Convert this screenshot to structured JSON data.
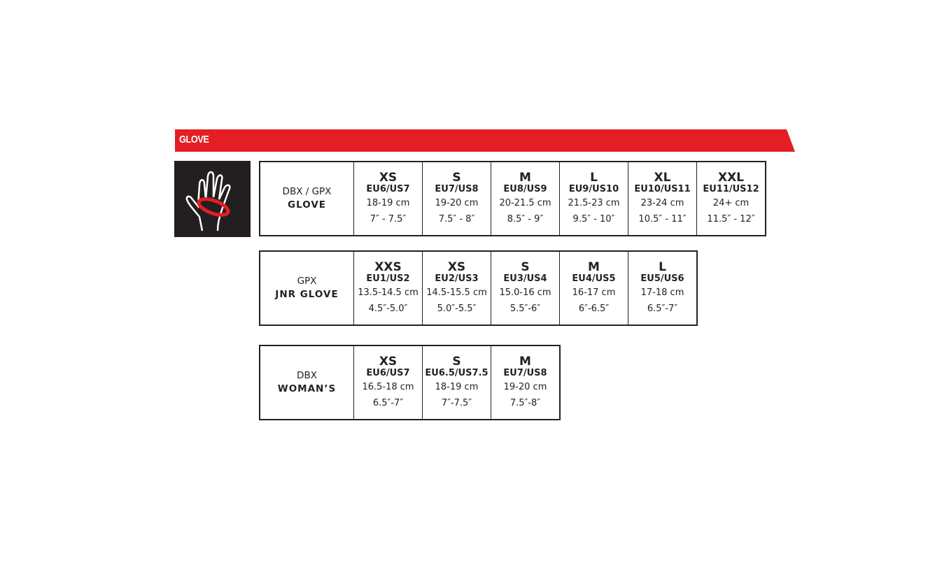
{
  "banner": {
    "title": "GLOVE",
    "color": "#e31e24"
  },
  "icon": "hand-measure-icon",
  "tables": [
    {
      "line1": "DBX / GPX",
      "line2": "GLOVE",
      "sizes": [
        {
          "size": "XS",
          "eu": "EU6/US7",
          "cm": "18-19 cm",
          "in": "7″ - 7.5″"
        },
        {
          "size": "S",
          "eu": "EU7/US8",
          "cm": "19-20 cm",
          "in": "7.5″ - 8″"
        },
        {
          "size": "M",
          "eu": "EU8/US9",
          "cm": "20-21.5 cm",
          "in": "8.5″ - 9″"
        },
        {
          "size": "L",
          "eu": "EU9/US10",
          "cm": "21.5-23 cm",
          "in": "9.5″ - 10″"
        },
        {
          "size": "XL",
          "eu": "EU10/US11",
          "cm": "23-24 cm",
          "in": "10.5″ - 11″"
        },
        {
          "size": "XXL",
          "eu": "EU11/US12",
          "cm": "24+ cm",
          "in": "11.5″ - 12″"
        }
      ]
    },
    {
      "line1": "GPX",
      "line2": "JNR GLOVE",
      "sizes": [
        {
          "size": "XXS",
          "eu": "EU1/US2",
          "cm": "13.5-14.5 cm",
          "in": "4.5″-5.0″"
        },
        {
          "size": "XS",
          "eu": "EU2/US3",
          "cm": "14.5-15.5 cm",
          "in": "5.0″-5.5″"
        },
        {
          "size": "S",
          "eu": "EU3/US4",
          "cm": "15.0-16 cm",
          "in": "5.5″-6″"
        },
        {
          "size": "M",
          "eu": "EU4/US5",
          "cm": "16-17 cm",
          "in": "6″-6.5″"
        },
        {
          "size": "L",
          "eu": "EU5/US6",
          "cm": "17-18 cm",
          "in": "6.5″-7″"
        }
      ]
    },
    {
      "line1": "DBX",
      "line2": "WOMAN’S",
      "sizes": [
        {
          "size": "XS",
          "eu": "EU6/US7",
          "cm": "16.5-18 cm",
          "in": "6.5″-7″"
        },
        {
          "size": "S",
          "eu": "EU6.5/US7.5",
          "cm": "18-19 cm",
          "in": "7″-7.5″"
        },
        {
          "size": "M",
          "eu": "EU7/US8",
          "cm": "19-20 cm",
          "in": "7.5″-8″"
        }
      ]
    }
  ]
}
